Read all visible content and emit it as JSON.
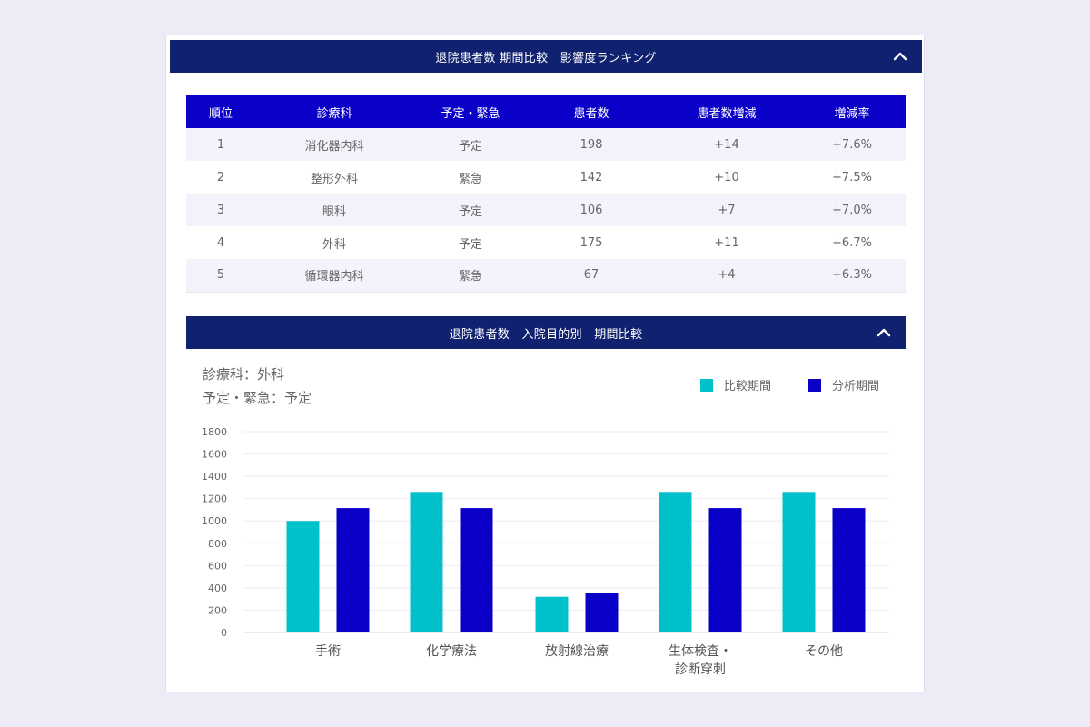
{
  "ranking_panel": {
    "title": "退院患者数 期間比較　影響度ランキング",
    "columns": [
      "順位",
      "診療科",
      "予定・緊急",
      "患者数",
      "患者数増減",
      "増減率"
    ],
    "rows": [
      [
        "1",
        "消化器内科",
        "予定",
        "198",
        "+14",
        "+7.6%"
      ],
      [
        "2",
        "整形外科",
        "緊急",
        "142",
        "+10",
        "+7.5%"
      ],
      [
        "3",
        "眼科",
        "予定",
        "106",
        "+7",
        "+7.0%"
      ],
      [
        "4",
        "外科",
        "予定",
        "175",
        "+11",
        "+6.7%"
      ],
      [
        "5",
        "循環器内科",
        "緊急",
        "67",
        "+4",
        "+6.3%"
      ]
    ]
  },
  "chart_panel": {
    "title": "退院患者数　入院目的別　期間比較",
    "filter_dept": "診療科：外科",
    "filter_type": "予定・緊急：予定"
  },
  "colors": {
    "compare": "#00c0cc",
    "analysis": "#0a00c8",
    "header": "#10216f"
  },
  "icons": {
    "collapse": "chevron-up-icon"
  },
  "chart_data": {
    "type": "bar",
    "categories": [
      [
        "手術"
      ],
      [
        "化学療法"
      ],
      [
        "放射線治療"
      ],
      [
        "生体検査・",
        "診断穿刺"
      ],
      [
        "その他"
      ]
    ],
    "series": [
      {
        "name": "比較期間",
        "values": [
          1000,
          1260,
          320,
          1260,
          1260
        ]
      },
      {
        "name": "分析期間",
        "values": [
          1115,
          1115,
          355,
          1115,
          1115
        ]
      }
    ],
    "ylim": [
      0,
      1800
    ],
    "yticks": [
      0,
      200,
      400,
      600,
      800,
      1000,
      1200,
      1400,
      1600,
      1800
    ],
    "legend": "top-right",
    "grid": true
  }
}
